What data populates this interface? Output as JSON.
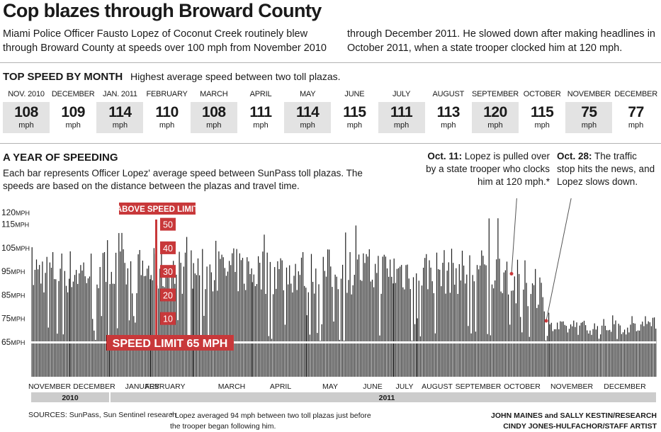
{
  "headline": "Cop blazes through Broward County",
  "intro": {
    "left": "Miami Police Officer Fausto Lopez of Coconut Creek routinely blew through Broward County at speeds over 100 mph from November 2010",
    "right": "through December 2011. He slowed down after making headlines in October 2011, when a state trooper clocked him at 120 mph."
  },
  "top_speed": {
    "title": "TOP SPEED BY MONTH",
    "subtitle": "Highest average speed between two toll plazas.",
    "unit": "mph",
    "months": [
      {
        "name": "NOV. 2010",
        "value": "108"
      },
      {
        "name": "DECEMBER",
        "value": "109"
      },
      {
        "name": "JAN. 2011",
        "value": "114"
      },
      {
        "name": "FEBRUARY",
        "value": "110"
      },
      {
        "name": "MARCH",
        "value": "108"
      },
      {
        "name": "APRIL",
        "value": "111"
      },
      {
        "name": "MAY",
        "value": "114"
      },
      {
        "name": "JUNE",
        "value": "115"
      },
      {
        "name": "JULY",
        "value": "111"
      },
      {
        "name": "AUGUST",
        "value": "113"
      },
      {
        "name": "SEPTEMBER",
        "value": "120"
      },
      {
        "name": "OCTOBER",
        "value": "115"
      },
      {
        "name": "NOVEMBER",
        "value": "75"
      },
      {
        "name": "DECEMBER",
        "value": "77"
      }
    ]
  },
  "year_section": {
    "title": "A YEAR OF SPEEDING",
    "description": "Each bar represents Officer Lopez' average speed between SunPass toll plazas. The speeds are based on the distance between the plazas and travel time."
  },
  "annotations": {
    "oct11": {
      "date": "Oct. 11:",
      "text": "Lopez is pulled over by a state trooper who clocks him at 120 mph.*"
    },
    "oct28": {
      "date": "Oct. 28:",
      "text": "The traffic stop hits the news, and Lopez slows down."
    }
  },
  "chart_data": {
    "type": "bar",
    "y_ticks": [
      {
        "value": 120,
        "label": "120",
        "unit": "MPH"
      },
      {
        "value": 115,
        "label": "115",
        "unit": "MPH"
      },
      {
        "value": 105,
        "label": "105",
        "unit": "MPH"
      },
      {
        "value": 95,
        "label": "95",
        "unit": "MPH"
      },
      {
        "value": 85,
        "label": "85",
        "unit": "MPH"
      },
      {
        "value": 75,
        "label": "75",
        "unit": "MPH"
      },
      {
        "value": 65,
        "label": "65",
        "unit": "MPH"
      }
    ],
    "speed_limit": {
      "value": 65,
      "label": "SPEED LIMIT 65 MPH"
    },
    "above_limit": {
      "label": "ABOVE SPEED LIMIT",
      "ticks": [
        "50",
        "40",
        "30",
        "20",
        "10"
      ],
      "values": [
        50,
        40,
        30,
        20,
        10
      ]
    },
    "x_months": [
      "NOVEMBER",
      "DECEMBER",
      "JANUARY",
      "FEBRUARY",
      "MARCH",
      "APRIL",
      "MAY",
      "JUNE",
      "JULY",
      "AUGUST",
      "SEPTEMBER",
      "OCTOBER",
      "NOVEMBER",
      "DECEMBER"
    ],
    "years": [
      {
        "label": "2010",
        "months": 2
      },
      {
        "label": "2011",
        "months": 12
      }
    ],
    "colors": {
      "bars": "#1e1e1e",
      "accent": "#c8383a",
      "year_bar": "#cccccc"
    },
    "monthly_bar_profile": [
      {
        "month": "NOVEMBER 2010",
        "typical_mph": [
          85,
          105
        ],
        "max_mph": 108
      },
      {
        "month": "DECEMBER 2010",
        "typical_mph": [
          85,
          105
        ],
        "max_mph": 109
      },
      {
        "month": "JANUARY 2011",
        "typical_mph": [
          85,
          105
        ],
        "max_mph": 114
      },
      {
        "month": "FEBRUARY 2011",
        "typical_mph": [
          85,
          105
        ],
        "max_mph": 110
      },
      {
        "month": "MARCH 2011",
        "typical_mph": [
          85,
          105
        ],
        "max_mph": 108
      },
      {
        "month": "APRIL 2011",
        "typical_mph": [
          85,
          105
        ],
        "max_mph": 111
      },
      {
        "month": "MAY 2011",
        "typical_mph": [
          85,
          105
        ],
        "max_mph": 114
      },
      {
        "month": "JUNE 2011",
        "typical_mph": [
          85,
          105
        ],
        "max_mph": 115
      },
      {
        "month": "JULY 2011",
        "typical_mph": [
          85,
          105
        ],
        "max_mph": 111
      },
      {
        "month": "AUGUST 2011",
        "typical_mph": [
          85,
          105
        ],
        "max_mph": 113
      },
      {
        "month": "SEPTEMBER 2011",
        "typical_mph": [
          85,
          105
        ],
        "max_mph": 120
      },
      {
        "month": "OCTOBER 2011",
        "typical_mph": [
          78,
          100
        ],
        "max_mph": 115
      },
      {
        "month": "NOVEMBER 2011",
        "typical_mph": [
          68,
          74
        ],
        "max_mph": 75
      },
      {
        "month": "DECEMBER 2011",
        "typical_mph": [
          68,
          75
        ],
        "max_mph": 77
      }
    ],
    "markers": [
      {
        "label": "Oct. 11",
        "mph": 94
      },
      {
        "label": "Oct. 28",
        "mph": 74
      }
    ]
  },
  "footer": {
    "sources": "SOURCES: SunPass, Sun Sentinel research",
    "footnote": "* Lopez averaged 94 mph between two toll plazas just before the trooper began following him.",
    "credit1": "JOHN MAINES and SALLY KESTIN/RESEARCH",
    "credit2": "CINDY JONES-HULFACHOR/STAFF ARTIST"
  }
}
